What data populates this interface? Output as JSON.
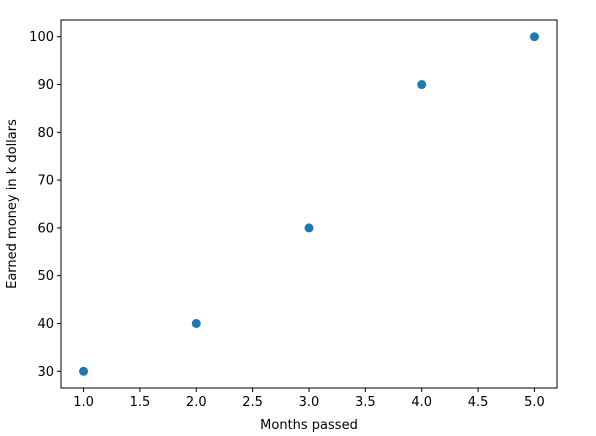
{
  "chart_data": {
    "type": "scatter",
    "title": "",
    "xlabel": "Months passed",
    "ylabel": "Earned money in k dollars",
    "x": [
      1,
      2,
      3,
      4,
      5
    ],
    "y": [
      30,
      40,
      60,
      90,
      100
    ],
    "xlim": [
      0.8,
      5.2
    ],
    "ylim": [
      26.5,
      103.5
    ],
    "xticks": [
      1.0,
      1.5,
      2.0,
      2.5,
      3.0,
      3.5,
      4.0,
      4.5,
      5.0
    ],
    "xtick_labels": [
      "1.0",
      "1.5",
      "2.0",
      "2.5",
      "3.0",
      "3.5",
      "4.0",
      "4.5",
      "5.0"
    ],
    "yticks": [
      30,
      40,
      50,
      60,
      70,
      80,
      90,
      100
    ],
    "ytick_labels": [
      "30",
      "40",
      "50",
      "60",
      "70",
      "80",
      "90",
      "100"
    ],
    "marker_color": "#1f77b4",
    "grid": false,
    "legend": "none"
  }
}
